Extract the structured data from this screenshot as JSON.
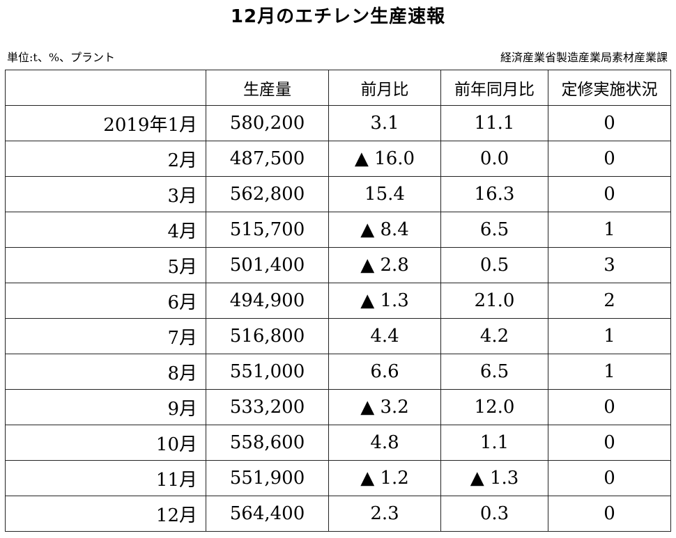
{
  "title": "12月のエチレン生産速報",
  "unit": "単位:t、%、プラント",
  "source": "経済産業省製造産業局素材産業課",
  "table": {
    "headers": [
      "",
      "生産量",
      "前月比",
      "前年同月比",
      "定修実施状況"
    ],
    "rows": [
      [
        "2019年1月",
        "580,200",
        "3.1",
        "11.1",
        "0"
      ],
      [
        "2月",
        "487,500",
        "▲ 16.0",
        "0.0",
        "0"
      ],
      [
        "3月",
        "562,800",
        "15.4",
        "16.3",
        "0"
      ],
      [
        "4月",
        "515,700",
        "▲ 8.4",
        "6.5",
        "1"
      ],
      [
        "5月",
        "501,400",
        "▲ 2.8",
        "0.5",
        "3"
      ],
      [
        "6月",
        "494,900",
        "▲ 1.3",
        "21.0",
        "2"
      ],
      [
        "7月",
        "516,800",
        "4.4",
        "4.2",
        "1"
      ],
      [
        "8月",
        "551,000",
        "6.6",
        "6.5",
        "1"
      ],
      [
        "9月",
        "533,200",
        "▲ 3.2",
        "12.0",
        "0"
      ],
      [
        "10月",
        "558,600",
        "4.8",
        "1.1",
        "0"
      ],
      [
        "11月",
        "551,900",
        "▲ 1.2",
        "▲ 1.3",
        "0"
      ],
      [
        "12月",
        "564,400",
        "2.3",
        "0.3",
        "0"
      ]
    ]
  }
}
